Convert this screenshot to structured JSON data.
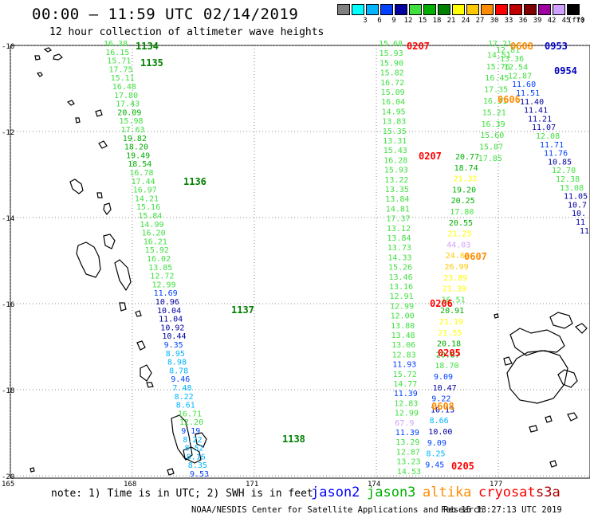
{
  "header": {
    "title": "00:00 – 11:59 UTC 02/14/2019",
    "subtitle": "12 hour collection of altimeter wave heights"
  },
  "legend": {
    "unit": "(ft)",
    "bins": [
      {
        "label": "",
        "color": "#808080"
      },
      {
        "label": "3",
        "color": "#00ffff"
      },
      {
        "label": "6",
        "color": "#00b4ff"
      },
      {
        "label": "9",
        "color": "#0040ff"
      },
      {
        "label": "12",
        "color": "#0000a0"
      },
      {
        "label": "15",
        "color": "#40e040"
      },
      {
        "label": "18",
        "color": "#00b000"
      },
      {
        "label": "21",
        "color": "#008000"
      },
      {
        "label": "24",
        "color": "#ffff00"
      },
      {
        "label": "27",
        "color": "#ffc800"
      },
      {
        "label": "30",
        "color": "#ff8c00"
      },
      {
        "label": "33",
        "color": "#ff0000"
      },
      {
        "label": "36",
        "color": "#c00000"
      },
      {
        "label": "39",
        "color": "#800000"
      },
      {
        "label": "42",
        "color": "#a000a0"
      },
      {
        "label": "45",
        "color": "#d0a0ff"
      },
      {
        "label": "70",
        "color": "#000000"
      }
    ]
  },
  "axes": {
    "lat_labels": [
      "-10",
      "-12",
      "-14",
      "-16",
      "-18",
      "-20"
    ],
    "lon_labels": [
      "165",
      "168",
      "171",
      "174",
      "177"
    ]
  },
  "tracks": [
    {
      "sat": "altika",
      "points": [
        {
          "v": "16.38",
          "c": "#40e040"
        },
        {
          "v": "16.15",
          "c": "#40e040"
        },
        {
          "v": "15.71",
          "c": "#40e040"
        },
        {
          "v": "17.75",
          "c": "#40e040"
        },
        {
          "v": "15.11",
          "c": "#40e040"
        },
        {
          "v": "16.48",
          "c": "#40e040"
        },
        {
          "v": "17.80",
          "c": "#40e040"
        },
        {
          "v": "17.43",
          "c": "#40e040"
        },
        {
          "v": "20.09",
          "c": "#00b000"
        },
        {
          "v": "15.98",
          "c": "#40e040"
        },
        {
          "v": "17.63",
          "c": "#40e040"
        },
        {
          "v": "19.82",
          "c": "#00b000"
        },
        {
          "v": "18.20",
          "c": "#00b000"
        },
        {
          "v": "19.49",
          "c": "#00b000"
        },
        {
          "v": "18.54",
          "c": "#00b000"
        },
        {
          "v": "16.78",
          "c": "#40e040"
        },
        {
          "v": "17.44",
          "c": "#40e040"
        },
        {
          "v": "16.97",
          "c": "#40e040"
        },
        {
          "v": "14.21",
          "c": "#40e040"
        },
        {
          "v": "15.16",
          "c": "#40e040"
        },
        {
          "v": "15.84",
          "c": "#40e040"
        },
        {
          "v": "14.99",
          "c": "#40e040"
        },
        {
          "v": "16.20",
          "c": "#40e040"
        },
        {
          "v": "16.21",
          "c": "#40e040"
        },
        {
          "v": "15.92",
          "c": "#40e040"
        },
        {
          "v": "16.02",
          "c": "#40e040"
        },
        {
          "v": "13.85",
          "c": "#40e040"
        },
        {
          "v": "12.72",
          "c": "#40e040"
        },
        {
          "v": "12.99",
          "c": "#40e040"
        },
        {
          "v": "11.69",
          "c": "#0040ff"
        },
        {
          "v": "10.96",
          "c": "#0000a0"
        },
        {
          "v": "10.04",
          "c": "#0000a0"
        },
        {
          "v": "11.04",
          "c": "#0000a0"
        },
        {
          "v": "10.92",
          "c": "#0000a0"
        },
        {
          "v": "10.44",
          "c": "#0000a0"
        },
        {
          "v": "9.35",
          "c": "#0040ff"
        },
        {
          "v": "8.95",
          "c": "#00b4ff"
        },
        {
          "v": "8.98",
          "c": "#00b4ff"
        },
        {
          "v": "8.78",
          "c": "#00b4ff"
        },
        {
          "v": "9.46",
          "c": "#0040ff"
        },
        {
          "v": "7.48",
          "c": "#00b4ff"
        },
        {
          "v": "8.22",
          "c": "#00b4ff"
        },
        {
          "v": "8.61",
          "c": "#00b4ff"
        },
        {
          "v": "16.71",
          "c": "#40e040"
        },
        {
          "v": "12.20",
          "c": "#40e040"
        },
        {
          "v": "9.19",
          "c": "#0040ff"
        },
        {
          "v": "8.22",
          "c": "#00b4ff"
        },
        {
          "v": "8.52",
          "c": "#00b4ff"
        },
        {
          "v": "8.16",
          "c": "#00b4ff"
        },
        {
          "v": "8.35",
          "c": "#00b4ff"
        },
        {
          "v": "9.53",
          "c": "#0040ff"
        }
      ]
    },
    {
      "sat": "jason3",
      "points": [
        {
          "v": "15.68",
          "c": "#40e040"
        },
        {
          "v": "15.93",
          "c": "#40e040"
        },
        {
          "v": "15.90",
          "c": "#40e040"
        },
        {
          "v": "15.82",
          "c": "#40e040"
        },
        {
          "v": "16.72",
          "c": "#40e040"
        },
        {
          "v": "15.09",
          "c": "#40e040"
        },
        {
          "v": "16.04",
          "c": "#40e040"
        },
        {
          "v": "14.95",
          "c": "#40e040"
        },
        {
          "v": "13.83",
          "c": "#40e040"
        },
        {
          "v": "15.35",
          "c": "#40e040"
        },
        {
          "v": "13.31",
          "c": "#40e040"
        },
        {
          "v": "15.43",
          "c": "#40e040"
        },
        {
          "v": "16.28",
          "c": "#40e040"
        },
        {
          "v": "15.93",
          "c": "#40e040"
        },
        {
          "v": "13.22",
          "c": "#40e040"
        },
        {
          "v": "13.35",
          "c": "#40e040"
        },
        {
          "v": "13.84",
          "c": "#40e040"
        },
        {
          "v": "14.81",
          "c": "#40e040"
        },
        {
          "v": "17.37",
          "c": "#40e040"
        },
        {
          "v": "13.12",
          "c": "#40e040"
        },
        {
          "v": "13.84",
          "c": "#40e040"
        },
        {
          "v": "13.73",
          "c": "#40e040"
        },
        {
          "v": "14.33",
          "c": "#40e040"
        },
        {
          "v": "15.26",
          "c": "#40e040"
        },
        {
          "v": "13.46",
          "c": "#40e040"
        },
        {
          "v": "13.16",
          "c": "#40e040"
        },
        {
          "v": "12.91",
          "c": "#40e040"
        },
        {
          "v": "12.99",
          "c": "#40e040"
        },
        {
          "v": "12.00",
          "c": "#40e040"
        },
        {
          "v": "13.80",
          "c": "#40e040"
        },
        {
          "v": "13.48",
          "c": "#40e040"
        },
        {
          "v": "13.06",
          "c": "#40e040"
        },
        {
          "v": "12.83",
          "c": "#40e040"
        },
        {
          "v": "11.93",
          "c": "#0040ff"
        },
        {
          "v": "15.72",
          "c": "#40e040"
        },
        {
          "v": "14.77",
          "c": "#40e040"
        },
        {
          "v": "11.39",
          "c": "#0040ff"
        },
        {
          "v": "12.83",
          "c": "#40e040"
        },
        {
          "v": "12.99",
          "c": "#40e040"
        },
        {
          "v": "67.9",
          "c": "#d0a0ff"
        },
        {
          "v": "11.39",
          "c": "#0040ff"
        },
        {
          "v": "13.29",
          "c": "#40e040"
        },
        {
          "v": "12.87",
          "c": "#40e040"
        },
        {
          "v": "13.23",
          "c": "#40e040"
        },
        {
          "v": "14.53",
          "c": "#40e040"
        }
      ]
    },
    {
      "sat": "jason2",
      "points": [
        {
          "v": "20.77",
          "c": "#00b000"
        },
        {
          "v": "18.74",
          "c": "#00b000"
        },
        {
          "v": "21.32",
          "c": "#ffff00"
        },
        {
          "v": "19.20",
          "c": "#00b000"
        },
        {
          "v": "20.25",
          "c": "#00b000"
        },
        {
          "v": "17.80",
          "c": "#40e040"
        },
        {
          "v": "20.55",
          "c": "#00b000"
        },
        {
          "v": "21.25",
          "c": "#ffff00"
        },
        {
          "v": "44.03",
          "c": "#d0a0ff"
        },
        {
          "v": "24.60",
          "c": "#ffc800"
        },
        {
          "v": "26.99",
          "c": "#ffc800"
        },
        {
          "v": "23.89",
          "c": "#ffff00"
        },
        {
          "v": "21.39",
          "c": "#ffff00"
        },
        {
          "v": "16.51",
          "c": "#40e040"
        },
        {
          "v": "20.91",
          "c": "#00b000"
        },
        {
          "v": "21.19",
          "c": "#ffff00"
        },
        {
          "v": "21.55",
          "c": "#ffff00"
        },
        {
          "v": "20.18",
          "c": "#00b000"
        },
        {
          "v": "20.87",
          "c": "#00b000"
        },
        {
          "v": "18.70",
          "c": "#40e040"
        },
        {
          "v": "9.09",
          "c": "#0040ff"
        },
        {
          "v": "10.47",
          "c": "#0000a0"
        },
        {
          "v": "9.22",
          "c": "#0040ff"
        },
        {
          "v": "10.13",
          "c": "#0000a0"
        },
        {
          "v": "8.66",
          "c": "#00b4ff"
        },
        {
          "v": "10.00",
          "c": "#0000a0"
        },
        {
          "v": "9.09",
          "c": "#0040ff"
        },
        {
          "v": "8.25",
          "c": "#00b4ff"
        },
        {
          "v": "9.45",
          "c": "#0040ff"
        }
      ]
    },
    {
      "sat": "cryosat_mid",
      "points": [
        {
          "v": "17.21",
          "c": "#40e040"
        },
        {
          "v": "14.51",
          "c": "#40e040"
        },
        {
          "v": "15.76",
          "c": "#40e040"
        },
        {
          "v": "16.45",
          "c": "#40e040"
        },
        {
          "v": "17.35",
          "c": "#40e040"
        },
        {
          "v": "16.31",
          "c": "#40e040"
        },
        {
          "v": "15.21",
          "c": "#40e040"
        },
        {
          "v": "16.39",
          "c": "#40e040"
        },
        {
          "v": "15.60",
          "c": "#40e040"
        },
        {
          "v": "15.87",
          "c": "#40e040"
        },
        {
          "v": "17.85",
          "c": "#40e040"
        }
      ]
    },
    {
      "sat": "s3a",
      "points": [
        {
          "v": "12.81",
          "c": "#40e040"
        },
        {
          "v": "13.36",
          "c": "#40e040"
        },
        {
          "v": "12.54",
          "c": "#40e040"
        },
        {
          "v": "12.87",
          "c": "#40e040"
        },
        {
          "v": "11.60",
          "c": "#0040ff"
        },
        {
          "v": "11.51",
          "c": "#0040ff"
        },
        {
          "v": "11.40",
          "c": "#0000a0"
        },
        {
          "v": "11.41",
          "c": "#0000a0"
        },
        {
          "v": "11.21",
          "c": "#0000a0"
        },
        {
          "v": "11.07",
          "c": "#0000a0"
        },
        {
          "v": "12.08",
          "c": "#40e040"
        },
        {
          "v": "11.71",
          "c": "#0040ff"
        },
        {
          "v": "11.76",
          "c": "#0040ff"
        },
        {
          "v": "10.85",
          "c": "#0000a0"
        },
        {
          "v": "12.70",
          "c": "#40e040"
        },
        {
          "v": "12.38",
          "c": "#40e040"
        },
        {
          "v": "13.08",
          "c": "#40e040"
        },
        {
          "v": "11.05",
          "c": "#0000a0"
        },
        {
          "v": "10.7",
          "c": "#0000a0"
        },
        {
          "v": "10.",
          "c": "#0000a0"
        },
        {
          "v": "11",
          "c": "#0000a0"
        },
        {
          "v": "11",
          "c": "#0000a0"
        }
      ]
    }
  ],
  "time_tags": [
    {
      "t": "1134",
      "c": "#008000"
    },
    {
      "t": "1135",
      "c": "#008000"
    },
    {
      "t": "1136",
      "c": "#008000"
    },
    {
      "t": "1137",
      "c": "#008000"
    },
    {
      "t": "1138",
      "c": "#008000"
    },
    {
      "t": "0207",
      "c": "#ff0000"
    },
    {
      "t": "0207",
      "c": "#ff0000"
    },
    {
      "t": "0206",
      "c": "#ff0000"
    },
    {
      "t": "0205",
      "c": "#ff0000"
    },
    {
      "t": "0205",
      "c": "#ff0000"
    },
    {
      "t": "0608",
      "c": "#ff8c00"
    },
    {
      "t": "0607",
      "c": "#ff8c00"
    },
    {
      "t": "0606",
      "c": "#ff8c00"
    },
    {
      "t": "0608",
      "c": "#ff8c00"
    },
    {
      "t": "0953",
      "c": "#0000c0"
    },
    {
      "t": "0954",
      "c": "#0000c0"
    }
  ],
  "footer": {
    "note": "note: 1) Time is in UTC; 2) SWH is in feet",
    "satellites": [
      {
        "name": "jason2",
        "color": "#0000ff"
      },
      {
        "name": "jason3",
        "color": "#00b000"
      },
      {
        "name": "altika",
        "color": "#ff8c00"
      },
      {
        "name": "cryosat",
        "color": "#ff0000"
      },
      {
        "name": "s3a",
        "color": "#b00000"
      }
    ],
    "credit": "NOAA/NESDIS Center for Satellite Applications and Research",
    "timestamp": "Feb 15 13:27:13 UTC 2019"
  }
}
